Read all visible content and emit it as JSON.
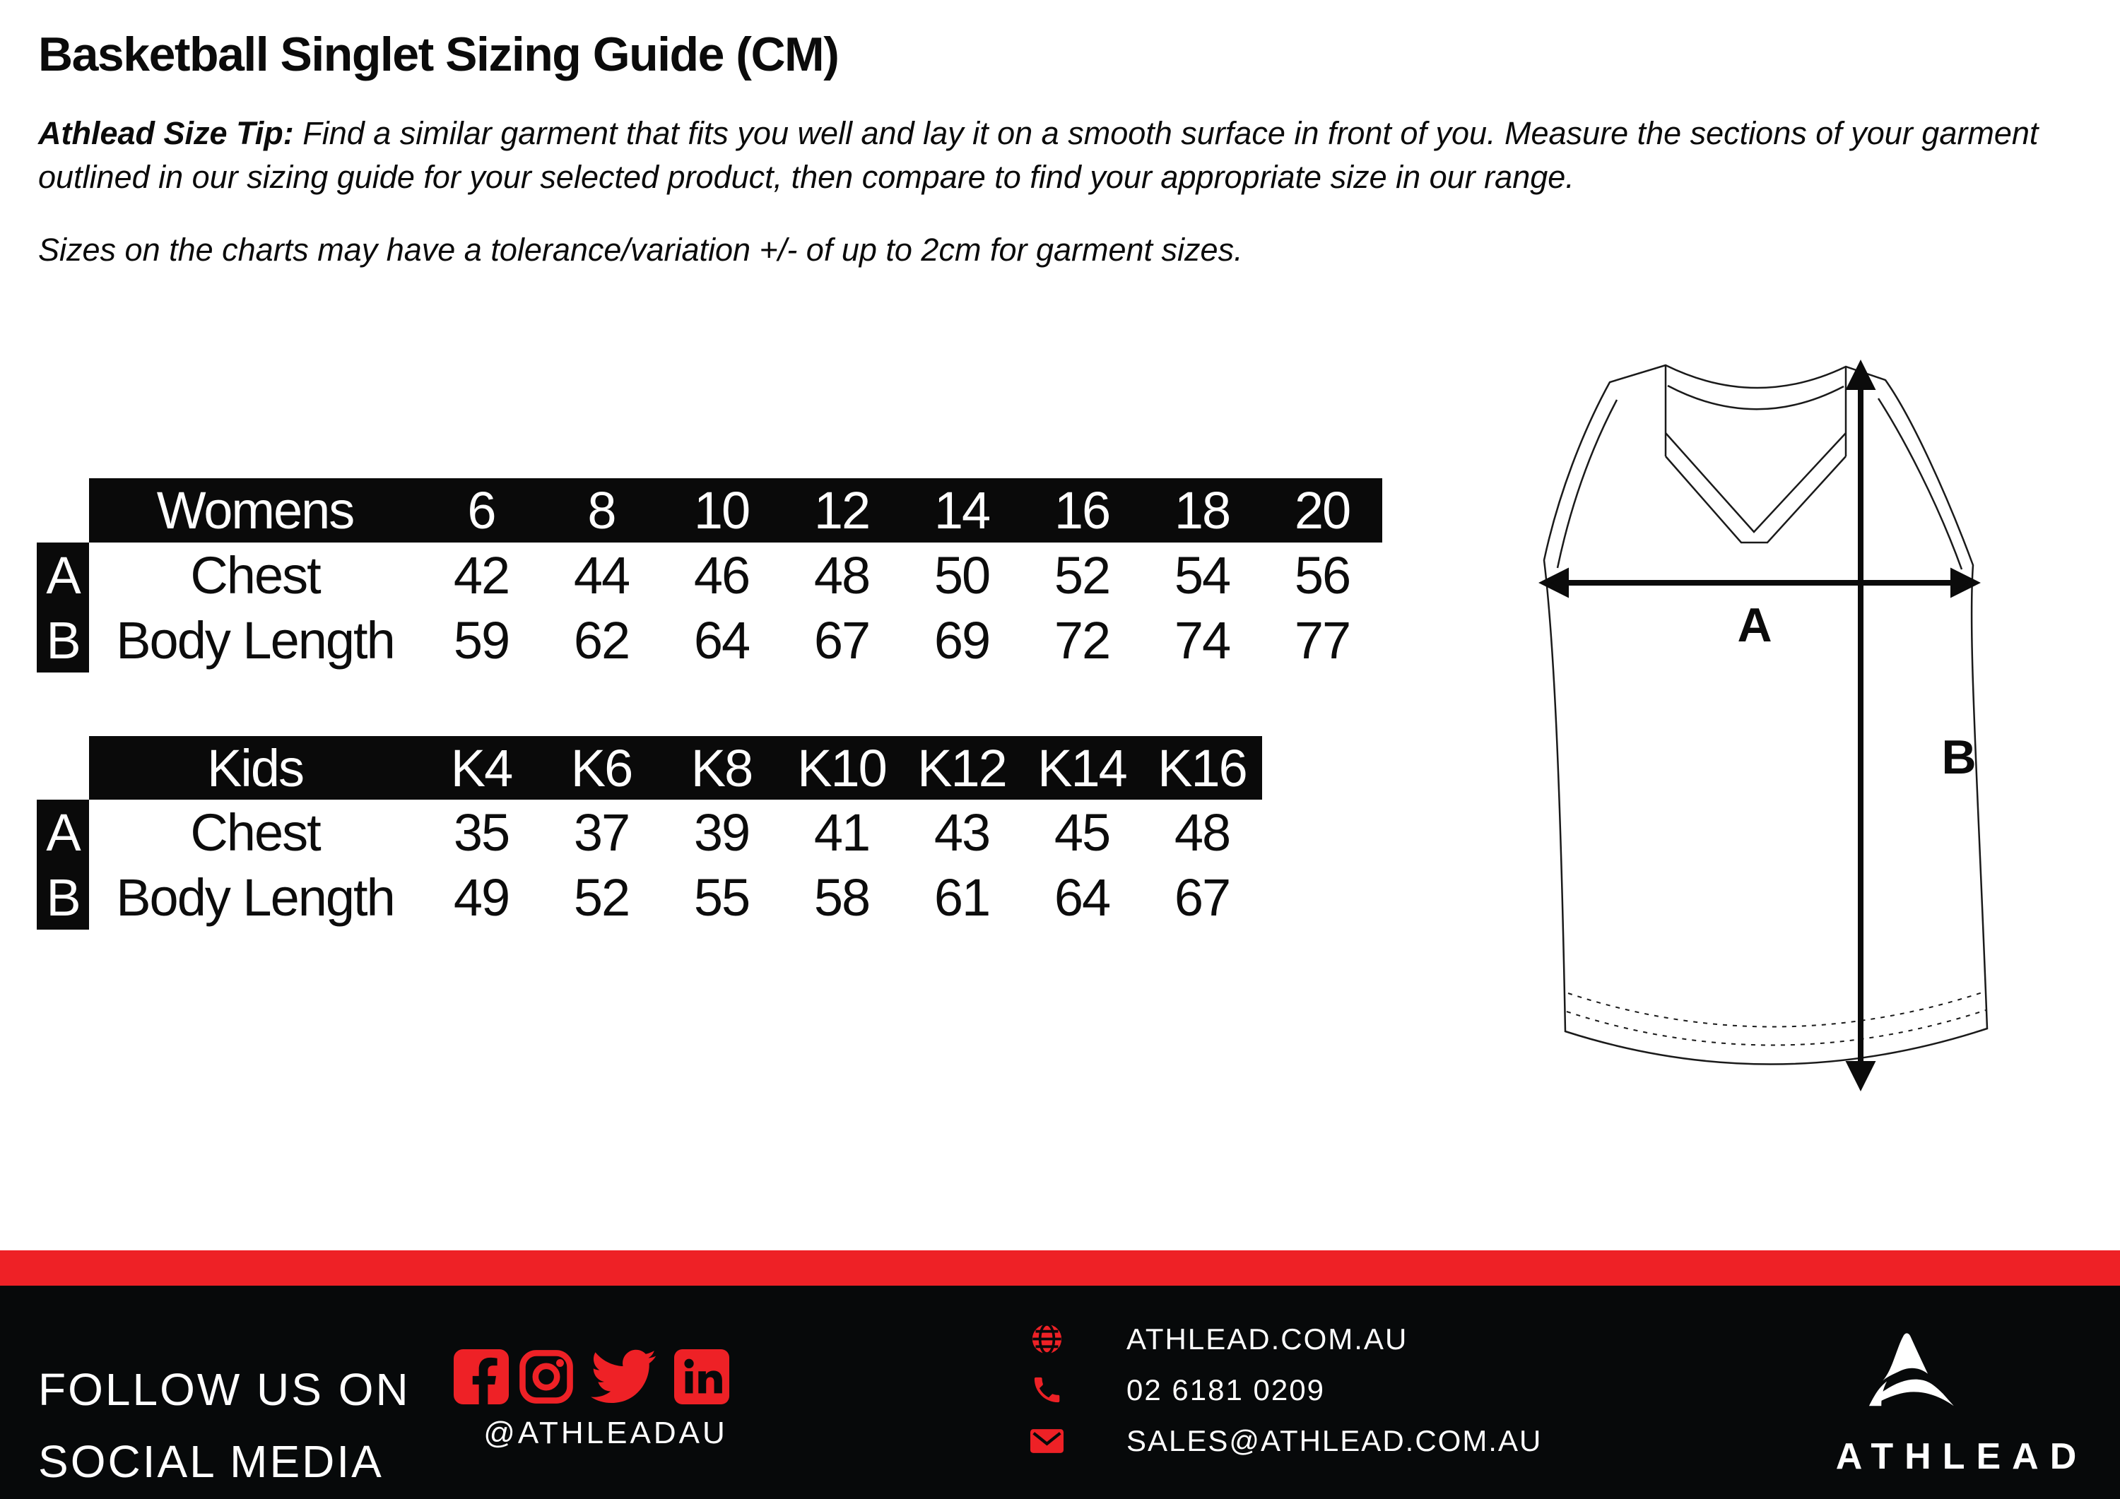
{
  "page": {
    "title": "Basketball Singlet Sizing Guide (CM)",
    "tip_bold": "Athlead Size Tip:",
    "tip_rest": " Find a similar garment that fits you well and lay it on a smooth surface in front of you. Measure the sections of your garment outlined in our sizing guide for your selected product, then compare to find your appropriate size in our range.",
    "tolerance": "Sizes on the charts may have a tolerance/variation +/- of up to 2cm for garment sizes."
  },
  "tables": {
    "womens": {
      "header_label": "Womens",
      "sizes": [
        "6",
        "8",
        "10",
        "12",
        "14",
        "16",
        "18",
        "20"
      ],
      "rows": [
        {
          "marker": "A",
          "label": "Chest",
          "values": [
            "42",
            "44",
            "46",
            "48",
            "50",
            "52",
            "54",
            "56"
          ]
        },
        {
          "marker": "B",
          "label": "Body Length",
          "values": [
            "59",
            "62",
            "64",
            "67",
            "69",
            "72",
            "74",
            "77"
          ]
        }
      ]
    },
    "kids": {
      "header_label": "Kids",
      "sizes": [
        "K4",
        "K6",
        "K8",
        "K10",
        "K12",
        "K14",
        "K16"
      ],
      "rows": [
        {
          "marker": "A",
          "label": "Chest",
          "values": [
            "35",
            "37",
            "39",
            "41",
            "43",
            "45",
            "48"
          ]
        },
        {
          "marker": "B",
          "label": "Body Length",
          "values": [
            "49",
            "52",
            "55",
            "58",
            "61",
            "64",
            "67"
          ]
        }
      ]
    }
  },
  "figure": {
    "chest_label": "A",
    "length_label": "B"
  },
  "footer": {
    "follow_line1": "FOLLOW US ON",
    "follow_line2": "SOCIAL MEDIA",
    "handle": "@ATHLEADAU",
    "social_icons": [
      "facebook-icon",
      "instagram-icon",
      "twitter-icon",
      "linkedin-icon"
    ],
    "website": "ATHLEAD.COM.AU",
    "phone": "02 6181 0209",
    "email": "SALES@ATHLEAD.COM.AU",
    "brand": "ATHLEAD"
  },
  "colors": {
    "accent_red": "#EE2126",
    "footer_black": "#07090A",
    "table_black": "#0A0A0A"
  }
}
